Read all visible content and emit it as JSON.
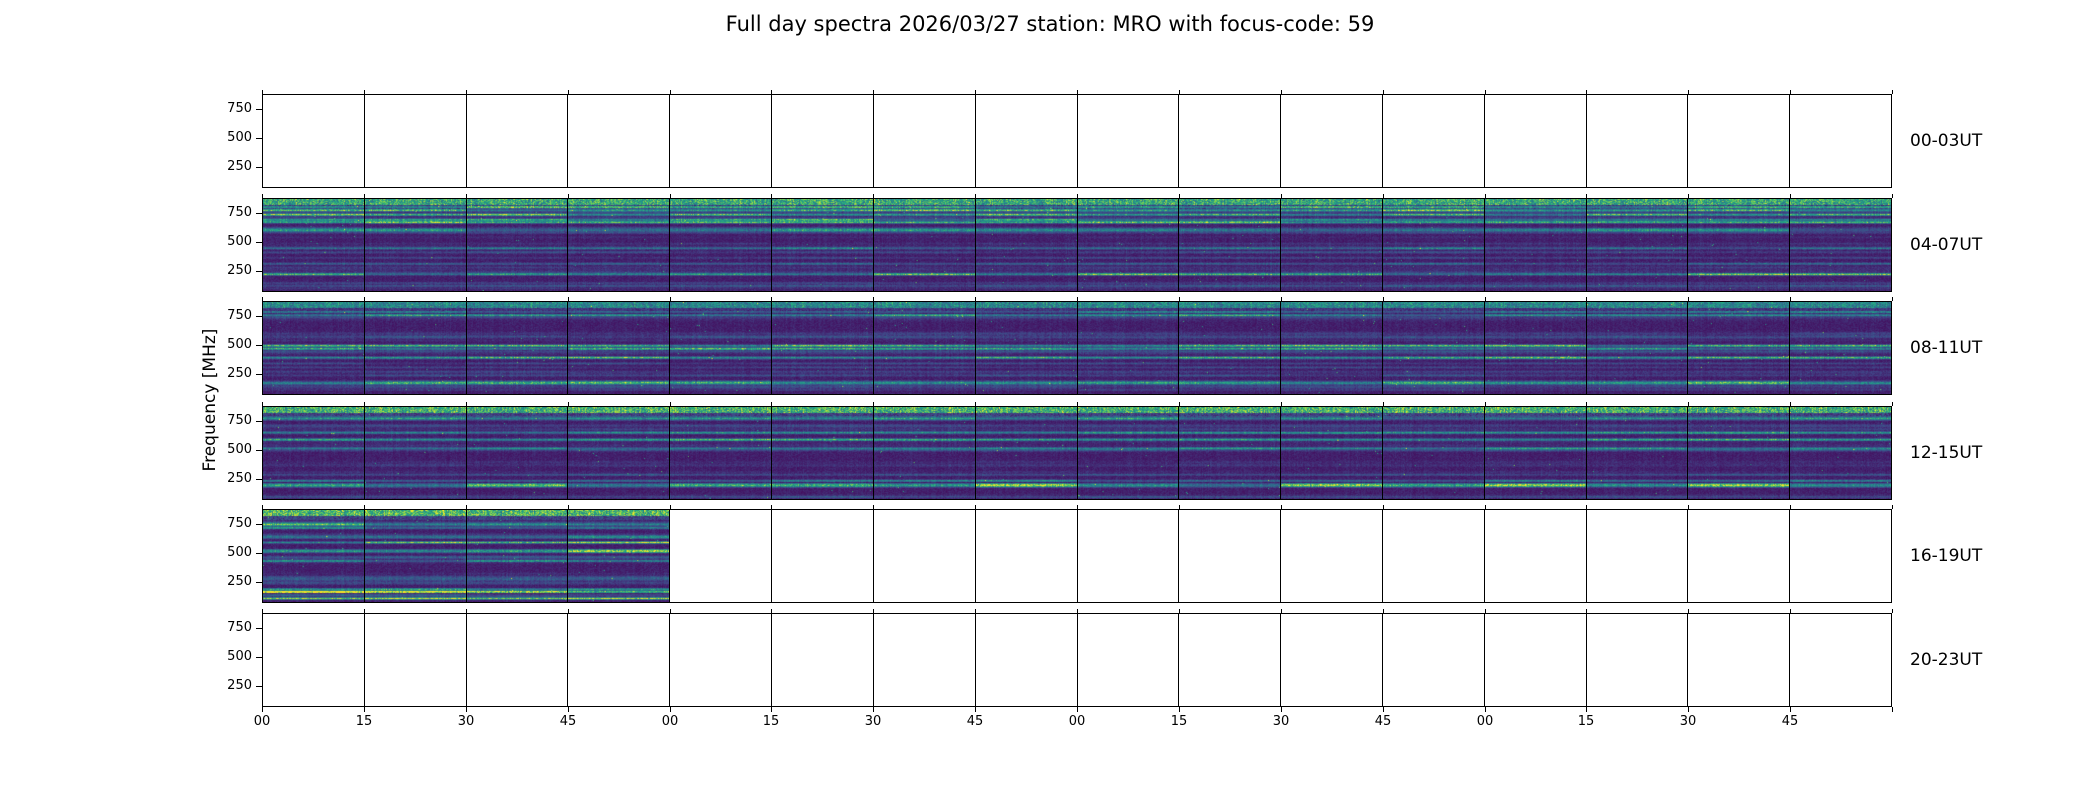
{
  "chart_data": {
    "type": "heatmap",
    "title": "Full day spectra 2026/03/27 station: MRO with focus-code: 59",
    "ylabel": "Frequency [MHz]",
    "colormap": "viridis",
    "colormap_stops": [
      "#440154",
      "#414487",
      "#2a788e",
      "#22a884",
      "#7ad151",
      "#fde725"
    ],
    "panels_per_row": 16,
    "minutes_per_panel": 15,
    "y_tick_labels_top_to_bottom": [
      "750",
      "500",
      "250"
    ],
    "x_tick_labels": [
      "00",
      "15",
      "30",
      "45",
      "00",
      "15",
      "30",
      "45",
      "00",
      "15",
      "30",
      "45",
      "00",
      "15",
      "30",
      "45"
    ],
    "rows": [
      {
        "label": "00-03UT",
        "filled_panels": 0
      },
      {
        "label": "04-07UT",
        "filled_panels": 16
      },
      {
        "label": "08-11UT",
        "filled_panels": 16
      },
      {
        "label": "12-15UT",
        "filled_panels": 16
      },
      {
        "label": "16-19UT",
        "filled_panels": 4
      },
      {
        "label": "20-23UT",
        "filled_panels": 0
      }
    ],
    "colors": {
      "background": "#ffffff",
      "axis": "#000000",
      "spectra_dark": "#440154",
      "spectra_mid": "#2a788e",
      "spectra_bright": "#7ad151",
      "spectra_peak": "#fde725"
    }
  }
}
